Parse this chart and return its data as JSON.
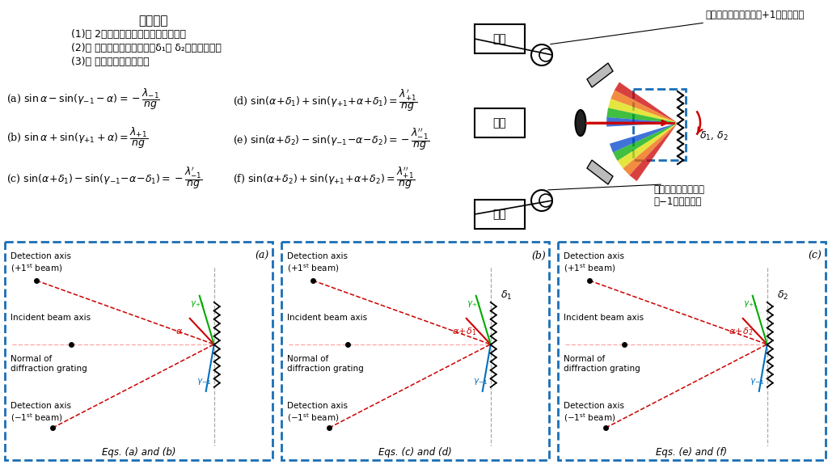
{
  "bg_color": "#ffffff",
  "dashed_border_color": "#1a6eb5",
  "points_title": "ポイント",
  "panel_labels": [
    "(a)",
    "(b)",
    "(c)"
  ],
  "panel_eqs_labels": [
    "Eqs. (a) and (b)",
    "Eqs. (c) and (d)",
    "Eqs. (e) and (f)"
  ],
  "colors": {
    "red": "#cc0000",
    "blue": "#0070c0",
    "green": "#00aa00",
    "dashed": "#1a6eb5",
    "black": "#000000",
    "gray": "#888888",
    "pink": "#ffaaaa"
  }
}
